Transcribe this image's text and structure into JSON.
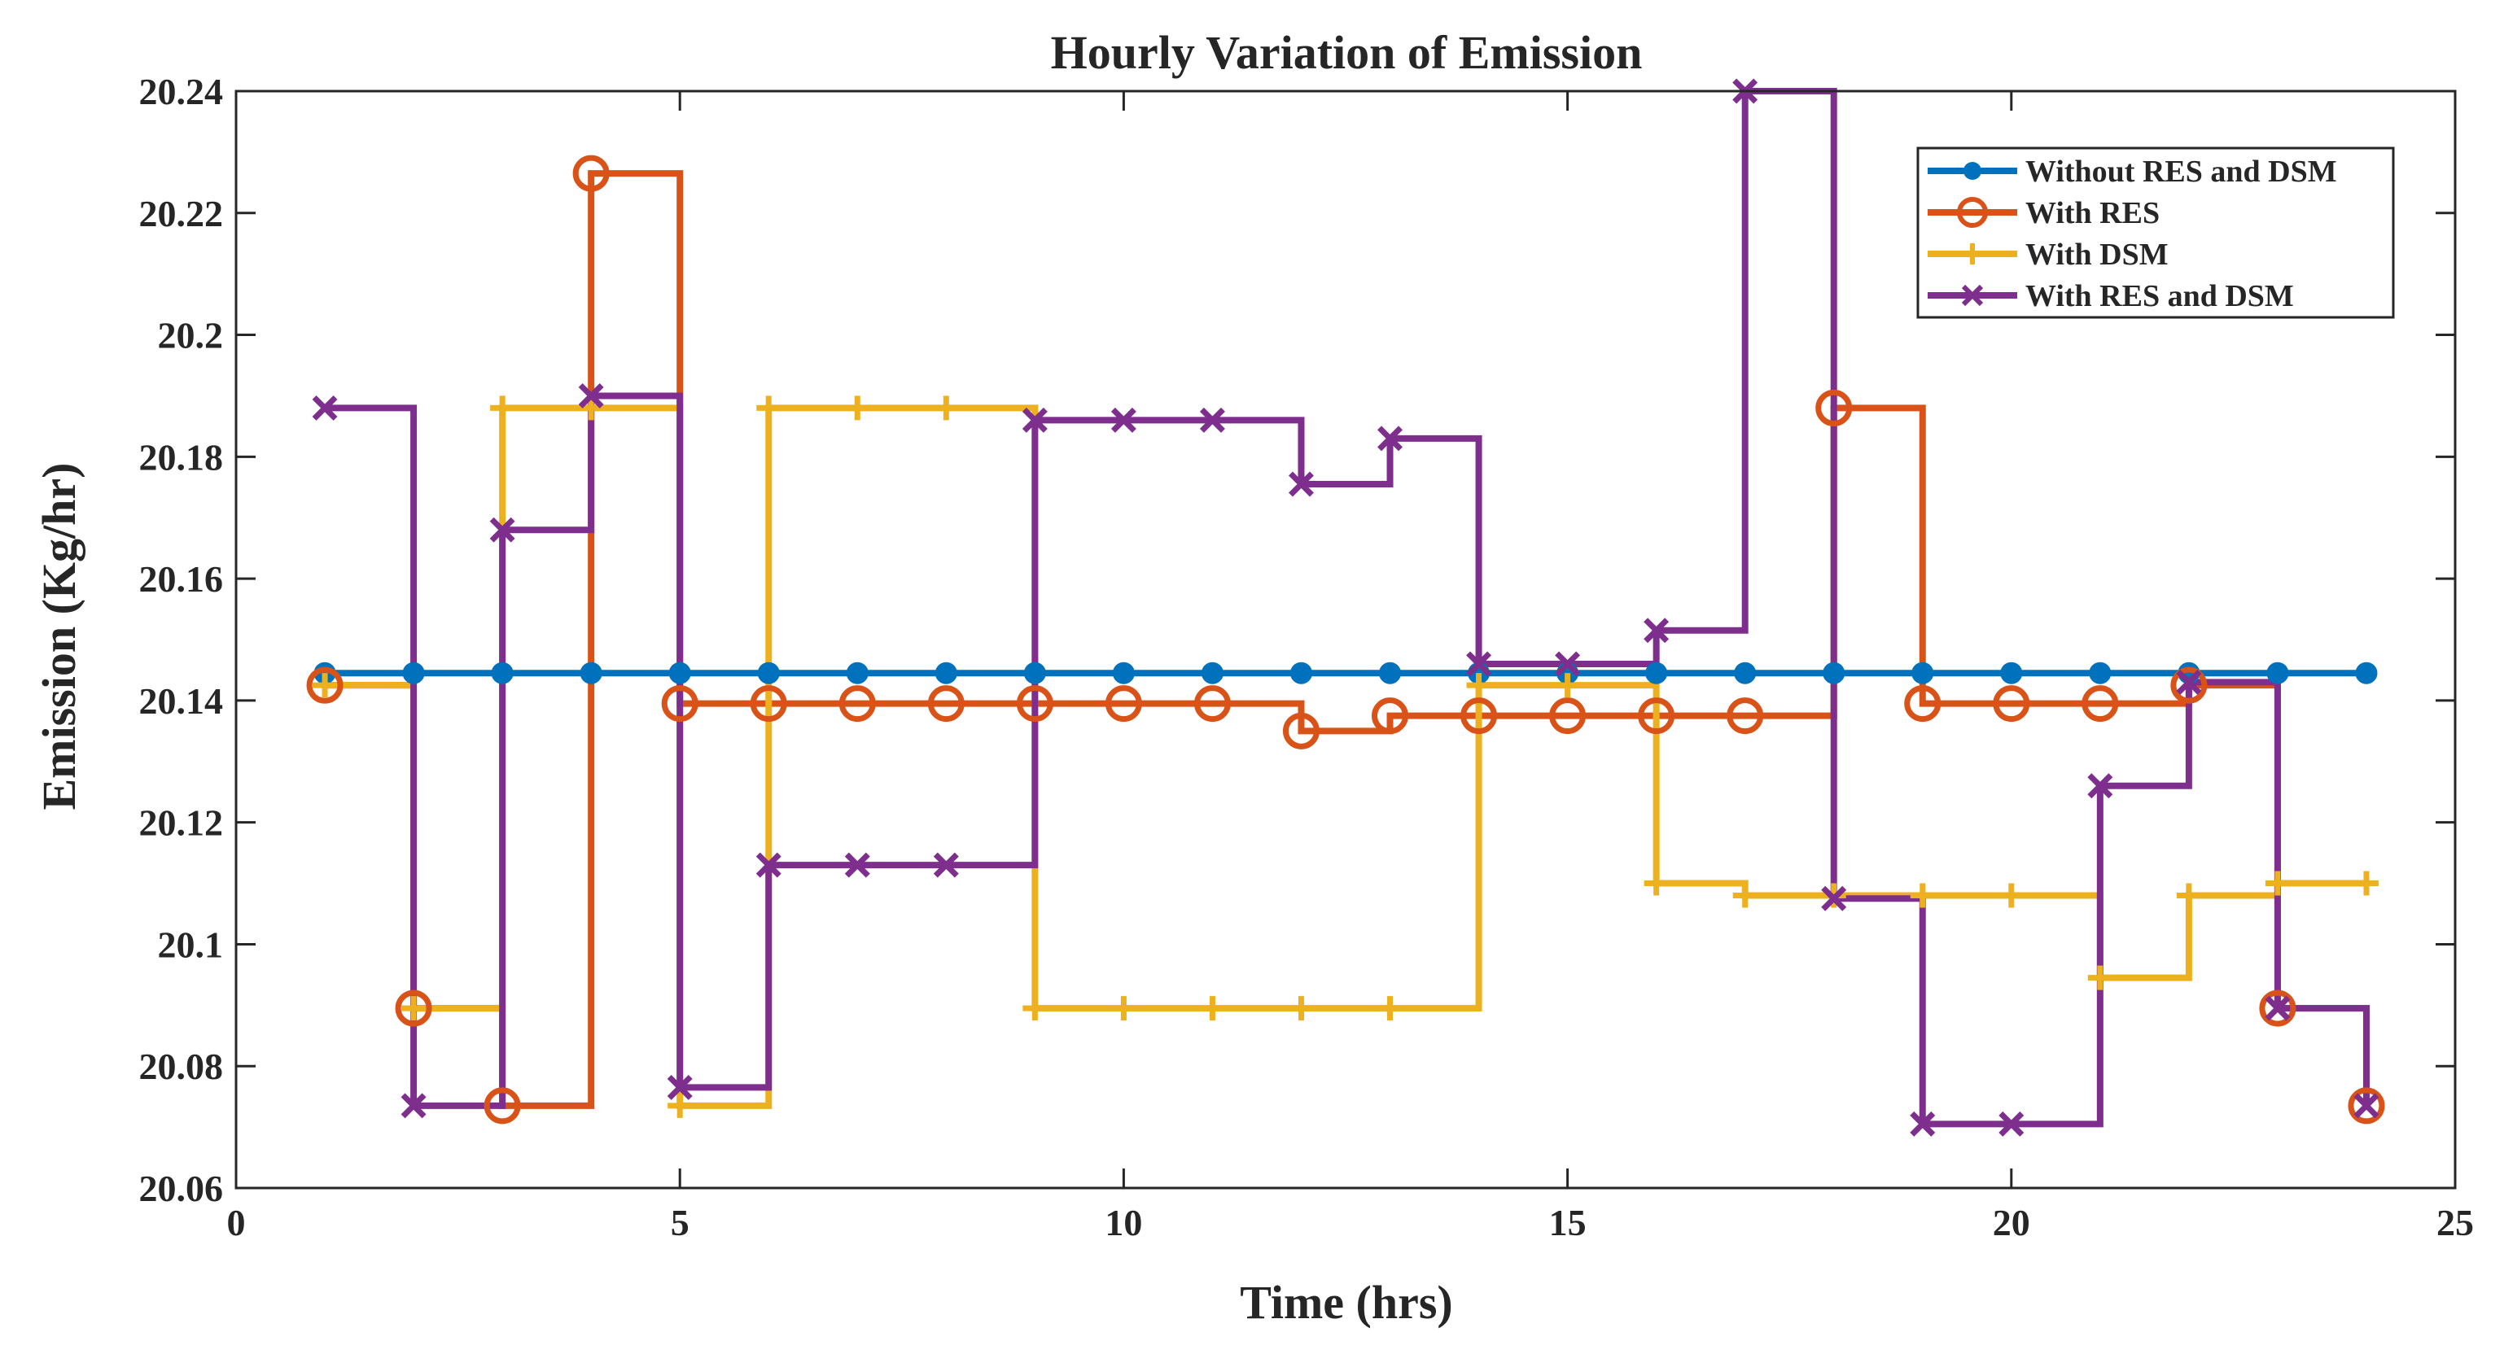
{
  "chart_data": {
    "type": "line",
    "step": true,
    "title": "Hourly Variation of Emission",
    "xlabel": "Time (hrs)",
    "ylabel": "Emission (Kg/hr)",
    "xlim": [
      0,
      25
    ],
    "ylim": [
      20.06,
      20.24
    ],
    "xticks": [
      0,
      5,
      10,
      15,
      20,
      25
    ],
    "xtick_labels": [
      "0",
      "5",
      "10",
      "15",
      "20",
      "25"
    ],
    "yticks": [
      20.06,
      20.08,
      20.1,
      20.12,
      20.14,
      20.16,
      20.18,
      20.2,
      20.22,
      20.24
    ],
    "ytick_labels": [
      "20.06",
      "20.08",
      "20.1",
      "20.12",
      "20.14",
      "20.16",
      "20.18",
      "20.2",
      "20.22",
      "20.24"
    ],
    "grid": false,
    "legend_position": "top-right",
    "x": [
      1,
      2,
      3,
      4,
      5,
      6,
      7,
      8,
      9,
      10,
      11,
      12,
      13,
      14,
      15,
      16,
      17,
      18,
      19,
      20,
      21,
      22,
      23,
      24
    ],
    "series": [
      {
        "name": "Without RES and DSM",
        "color": "#0072BD",
        "marker": "dot",
        "values": [
          20.1445,
          20.1445,
          20.1445,
          20.1445,
          20.1445,
          20.1445,
          20.1445,
          20.1445,
          20.1445,
          20.1445,
          20.1445,
          20.1445,
          20.1445,
          20.1445,
          20.1445,
          20.1445,
          20.1445,
          20.1445,
          20.1445,
          20.1445,
          20.1445,
          20.1445,
          20.1445,
          20.1445
        ]
      },
      {
        "name": "With RES",
        "color": "#D95319",
        "marker": "circle",
        "values": [
          20.1425,
          20.0895,
          20.0735,
          20.2265,
          20.1395,
          20.1395,
          20.1395,
          20.1395,
          20.1395,
          20.1395,
          20.1395,
          20.135,
          20.1375,
          20.1375,
          20.1375,
          20.1375,
          20.1375,
          20.188,
          20.1395,
          20.1395,
          20.1395,
          20.1425,
          20.0895,
          20.0735
        ]
      },
      {
        "name": "With DSM",
        "color": "#EDB120",
        "marker": "plus",
        "values": [
          20.1425,
          20.0895,
          20.188,
          20.188,
          20.0735,
          20.188,
          20.188,
          20.188,
          20.0895,
          20.0895,
          20.0895,
          20.0895,
          20.0895,
          20.1425,
          20.1425,
          20.11,
          20.108,
          20.108,
          20.108,
          20.108,
          20.0945,
          20.108,
          20.11,
          20.11
        ]
      },
      {
        "name": "With RES and DSM",
        "color": "#7E2F8E",
        "marker": "cross",
        "values": [
          20.188,
          20.0735,
          20.168,
          20.19,
          20.0765,
          20.113,
          20.113,
          20.113,
          20.186,
          20.186,
          20.186,
          20.1755,
          20.183,
          20.146,
          20.146,
          20.1515,
          20.24,
          20.1075,
          20.0705,
          20.0705,
          20.126,
          20.143,
          20.0895,
          20.0735
        ]
      }
    ]
  }
}
